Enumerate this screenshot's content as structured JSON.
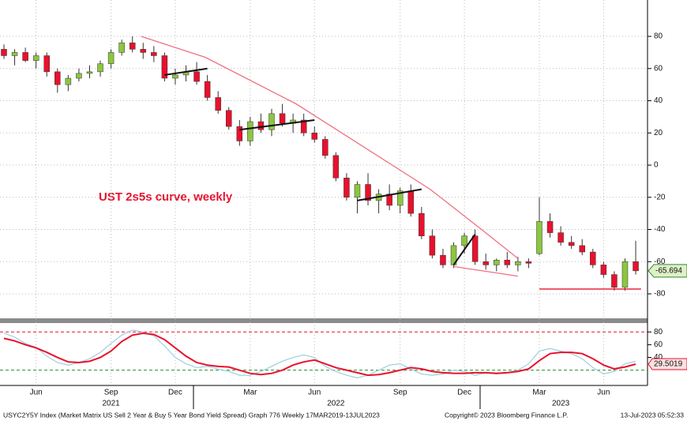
{
  "chart_data": [
    {
      "type": "candlestick",
      "annotation": "UST 2s5s curve, weekly",
      "categories": [
        null,
        null,
        null,
        "Jun",
        null,
        null,
        null,
        null,
        null,
        null,
        "Sep",
        null,
        null,
        null,
        null,
        null,
        "Dec",
        null,
        null,
        null,
        null,
        null,
        null,
        "Mar",
        null,
        null,
        null,
        null,
        null,
        "Jun",
        null,
        null,
        null,
        null,
        null,
        null,
        null,
        "Sep",
        null,
        null,
        null,
        null,
        null,
        "Dec",
        null,
        null,
        null,
        null,
        null,
        null,
        "Mar",
        null,
        null,
        null,
        null,
        null,
        "Jun",
        null,
        null,
        null
      ],
      "year_labels": [
        null,
        null,
        null,
        null,
        null,
        null,
        null,
        null,
        null,
        null,
        "2021",
        null,
        null,
        null,
        null,
        null,
        null,
        null,
        null,
        null,
        null,
        null,
        null,
        null,
        null,
        null,
        null,
        null,
        null,
        null,
        null,
        "2022",
        null,
        null,
        null,
        null,
        null,
        null,
        null,
        null,
        null,
        null,
        null,
        null,
        null,
        null,
        null,
        null,
        null,
        null,
        null,
        null,
        "2023",
        null,
        null,
        null,
        null,
        null,
        null,
        null
      ],
      "open": [
        72,
        68,
        70,
        65,
        68,
        58,
        50,
        54,
        57,
        58,
        63,
        70,
        76,
        72,
        70,
        68,
        54,
        56,
        58,
        52,
        42,
        34,
        24,
        15,
        27,
        22,
        32,
        26,
        28,
        20,
        16,
        6,
        -8,
        -20,
        -12,
        -22,
        -18,
        -25,
        -16,
        -30,
        -44,
        -56,
        -62,
        -50,
        -44,
        -60,
        -62,
        -59,
        -62,
        -60,
        -55,
        -35,
        -42,
        -48,
        -50,
        -54,
        -62,
        -68,
        -76,
        -60
      ],
      "high": [
        75,
        72,
        73,
        70,
        70,
        60,
        56,
        60,
        62,
        65,
        72,
        78,
        80,
        76,
        74,
        70,
        60,
        62,
        64,
        56,
        46,
        36,
        28,
        30,
        32,
        35,
        38,
        32,
        32,
        24,
        18,
        8,
        -5,
        -10,
        -5,
        -15,
        -12,
        -14,
        -12,
        -26,
        -40,
        -52,
        -48,
        -42,
        -40,
        -55,
        -58,
        -54,
        -57,
        -58,
        -20,
        -30,
        -38,
        -44,
        -46,
        -52,
        -60,
        -66,
        -58,
        -47
      ],
      "low": [
        66,
        62,
        64,
        60,
        55,
        45,
        46,
        52,
        54,
        55,
        60,
        68,
        70,
        66,
        64,
        52,
        50,
        52,
        50,
        40,
        32,
        22,
        12,
        12,
        20,
        18,
        24,
        20,
        18,
        14,
        4,
        -10,
        -22,
        -30,
        -25,
        -30,
        -28,
        -30,
        -32,
        -46,
        -58,
        -64,
        -64,
        -55,
        -62,
        -65,
        -66,
        -64,
        -66,
        -64,
        -56,
        -45,
        -50,
        -52,
        -56,
        -64,
        -70,
        -78,
        -78,
        -68
      ],
      "close": [
        68,
        70,
        65,
        68,
        58,
        50,
        54,
        57,
        58,
        63,
        70,
        76,
        72,
        70,
        68,
        54,
        56,
        58,
        52,
        42,
        34,
        24,
        15,
        27,
        22,
        32,
        26,
        28,
        20,
        16,
        6,
        -8,
        -20,
        -12,
        -22,
        -18,
        -25,
        -16,
        -30,
        -44,
        -56,
        -62,
        -50,
        -44,
        -60,
        -62,
        -59,
        -62,
        -60,
        -61,
        -35,
        -42,
        -48,
        -50,
        -54,
        -62,
        -68,
        -76,
        -60,
        -65.694
      ],
      "up_color": "#8cc63f",
      "down_color": "#e8112d",
      "ylim": [
        -95.2,
        102.6
      ],
      "yticks": [
        80,
        60,
        40,
        20,
        0,
        -20,
        -40,
        -60,
        -80
      ],
      "grid": true,
      "trendlines": [
        {
          "color": "#f07080",
          "x": [
            12.8,
            18.8,
            27.3,
            39.8,
            44.6,
            48
          ],
          "values": [
            80,
            67,
            38,
            -15,
            -40,
            -58
          ]
        },
        {
          "color": "#f07080",
          "x": [
            42,
            48
          ],
          "values": [
            -63,
            -69
          ]
        },
        {
          "color": "#e8112d",
          "x": [
            50,
            59.5
          ],
          "values": [
            -77,
            -77
          ]
        },
        {
          "color": "#111111",
          "x": [
            15,
            19
          ],
          "values": [
            56,
            60
          ]
        },
        {
          "color": "#111111",
          "x": [
            22,
            29
          ],
          "values": [
            22,
            28
          ]
        },
        {
          "color": "#111111",
          "x": [
            33,
            39
          ],
          "values": [
            -22,
            -15
          ]
        },
        {
          "color": "#111111",
          "x": [
            42,
            44
          ],
          "values": [
            -62,
            -43
          ]
        }
      ]
    },
    {
      "type": "line",
      "series": [
        {
          "color": "#9ccfe0",
          "values": [
            78,
            72,
            62,
            56,
            42,
            32,
            28,
            32,
            38,
            48,
            62,
            75,
            83,
            80,
            74,
            58,
            40,
            30,
            24,
            26,
            22,
            18,
            12,
            12,
            18,
            26,
            34,
            40,
            44,
            40,
            26,
            18,
            12,
            8,
            12,
            20,
            28,
            30,
            22,
            14,
            12,
            14,
            20,
            18,
            12,
            16,
            14,
            16,
            20,
            30,
            50,
            54,
            50,
            46,
            38,
            24,
            14,
            18,
            30,
            34
          ]
        },
        {
          "color": "#e8112d",
          "values": [
            70,
            66,
            60,
            55,
            48,
            40,
            33,
            32,
            34,
            40,
            50,
            65,
            75,
            78,
            76,
            68,
            55,
            42,
            32,
            28,
            26,
            25,
            20,
            15,
            13,
            15,
            20,
            28,
            33,
            36,
            30,
            24,
            20,
            16,
            12,
            13,
            16,
            20,
            24,
            22,
            18,
            16,
            15,
            15,
            16,
            16,
            15,
            16,
            18,
            22,
            35,
            46,
            48,
            48,
            46,
            38,
            28,
            22,
            25,
            29.5019
          ]
        }
      ],
      "ylim": [
        -4,
        94
      ],
      "yticks": [
        80,
        60,
        40
      ],
      "reference_lines": [
        {
          "value": 80,
          "color": "#e8112d"
        },
        {
          "value": 20,
          "color": "#2e8b2e"
        }
      ]
    }
  ],
  "footer": {
    "left": "USYC2Y5Y Index (Market Matrix US Sell 2 Year & Buy 5 Year Bond Yield Spread) Graph 776  Weekly 17MAR2019-13JUL2023",
    "center": "Copyright© 2023 Bloomberg Finance L.P.",
    "right": "13-Jul-2023 05:52:33"
  }
}
